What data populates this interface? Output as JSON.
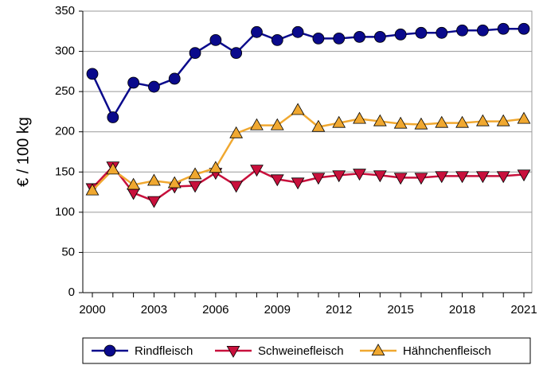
{
  "chart_data": {
    "type": "line",
    "y_label": "€ / 100 kg",
    "x": [
      2000,
      2001,
      2002,
      2003,
      2004,
      2005,
      2006,
      2007,
      2008,
      2009,
      2010,
      2011,
      2012,
      2013,
      2014,
      2015,
      2016,
      2017,
      2018,
      2019,
      2020,
      2021
    ],
    "xlim": [
      2000,
      2021
    ],
    "xticks": [
      2000,
      2003,
      2006,
      2009,
      2012,
      2015,
      2018,
      2021
    ],
    "ylim": [
      0,
      350
    ],
    "yticks": [
      0,
      50,
      100,
      150,
      200,
      250,
      300,
      350
    ],
    "grid": true,
    "legend": "bottom",
    "series": [
      {
        "name": "Rindfleisch",
        "color": "#0a0a8c",
        "marker": "circle",
        "values": [
          272,
          218,
          261,
          256,
          266,
          298,
          314,
          298,
          324,
          314,
          324,
          316,
          316,
          318,
          318,
          321,
          323,
          323,
          326,
          326,
          328,
          328
        ]
      },
      {
        "name": "Schweinefleisch",
        "color": "#c8103c",
        "marker": "triangle-down",
        "values": [
          130,
          157,
          124,
          114,
          132,
          133,
          149,
          133,
          153,
          141,
          137,
          143,
          146,
          148,
          146,
          143,
          143,
          145,
          145,
          145,
          145,
          147
        ]
      },
      {
        "name": "Hähnchenfleisch",
        "color": "#f0a830",
        "marker": "triangle-up",
        "values": [
          127,
          153,
          134,
          139,
          136,
          147,
          155,
          198,
          208,
          208,
          227,
          206,
          211,
          216,
          213,
          210,
          209,
          211,
          211,
          213,
          213,
          216
        ]
      }
    ]
  }
}
